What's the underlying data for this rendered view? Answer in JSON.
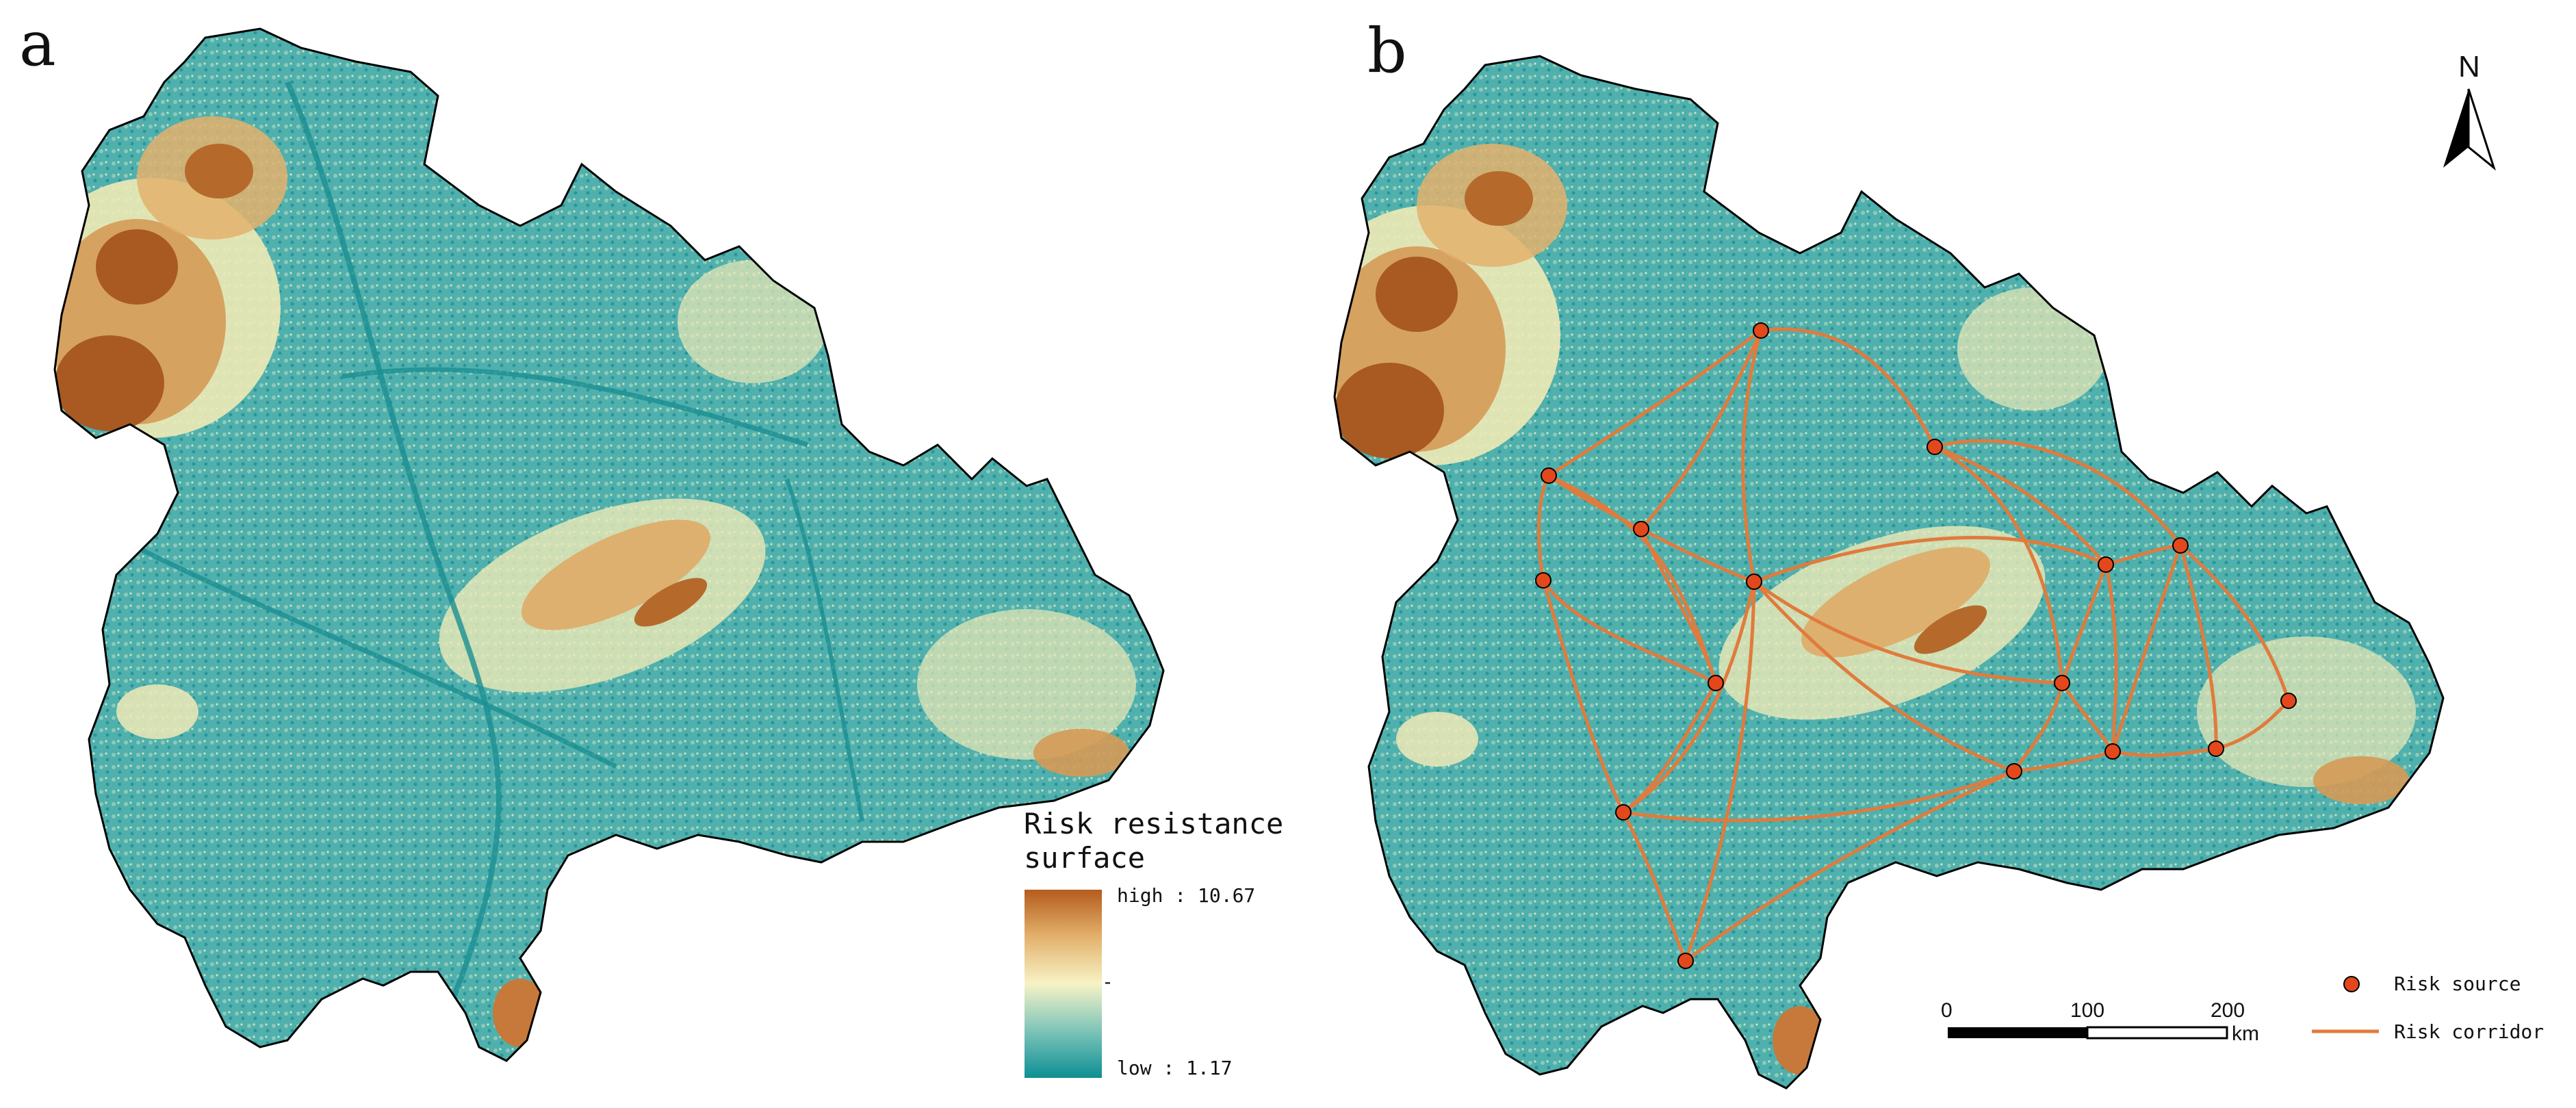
{
  "panels": {
    "a": {
      "letter": "a"
    },
    "b": {
      "letter": "b"
    }
  },
  "legend_a": {
    "title_line1": "Risk resistance",
    "title_line2": "surface",
    "high_label": "high : 10.67",
    "low_label": "low : 1.17",
    "mid_mark": "-",
    "colors": {
      "high": "#b45c1e",
      "upper": "#e3b16c",
      "mid": "#f7f3c6",
      "lower": "#7ec4b9",
      "low": "#0d8f94"
    }
  },
  "legend_b": {
    "source_label": "Risk source",
    "corridor_label": "Risk corridor",
    "source_color": "#e2481b",
    "corridor_color": "#e07b3d"
  },
  "scale_bar": {
    "labels": [
      "0",
      "100",
      "200"
    ],
    "unit": "km"
  },
  "north_arrow": {
    "label": "N"
  },
  "map_colors": {
    "teal": "#3fa6a8",
    "light": "#a7d3c2",
    "cream": "#eeeab6",
    "orange": "#d59a55",
    "brown": "#a85a22"
  }
}
